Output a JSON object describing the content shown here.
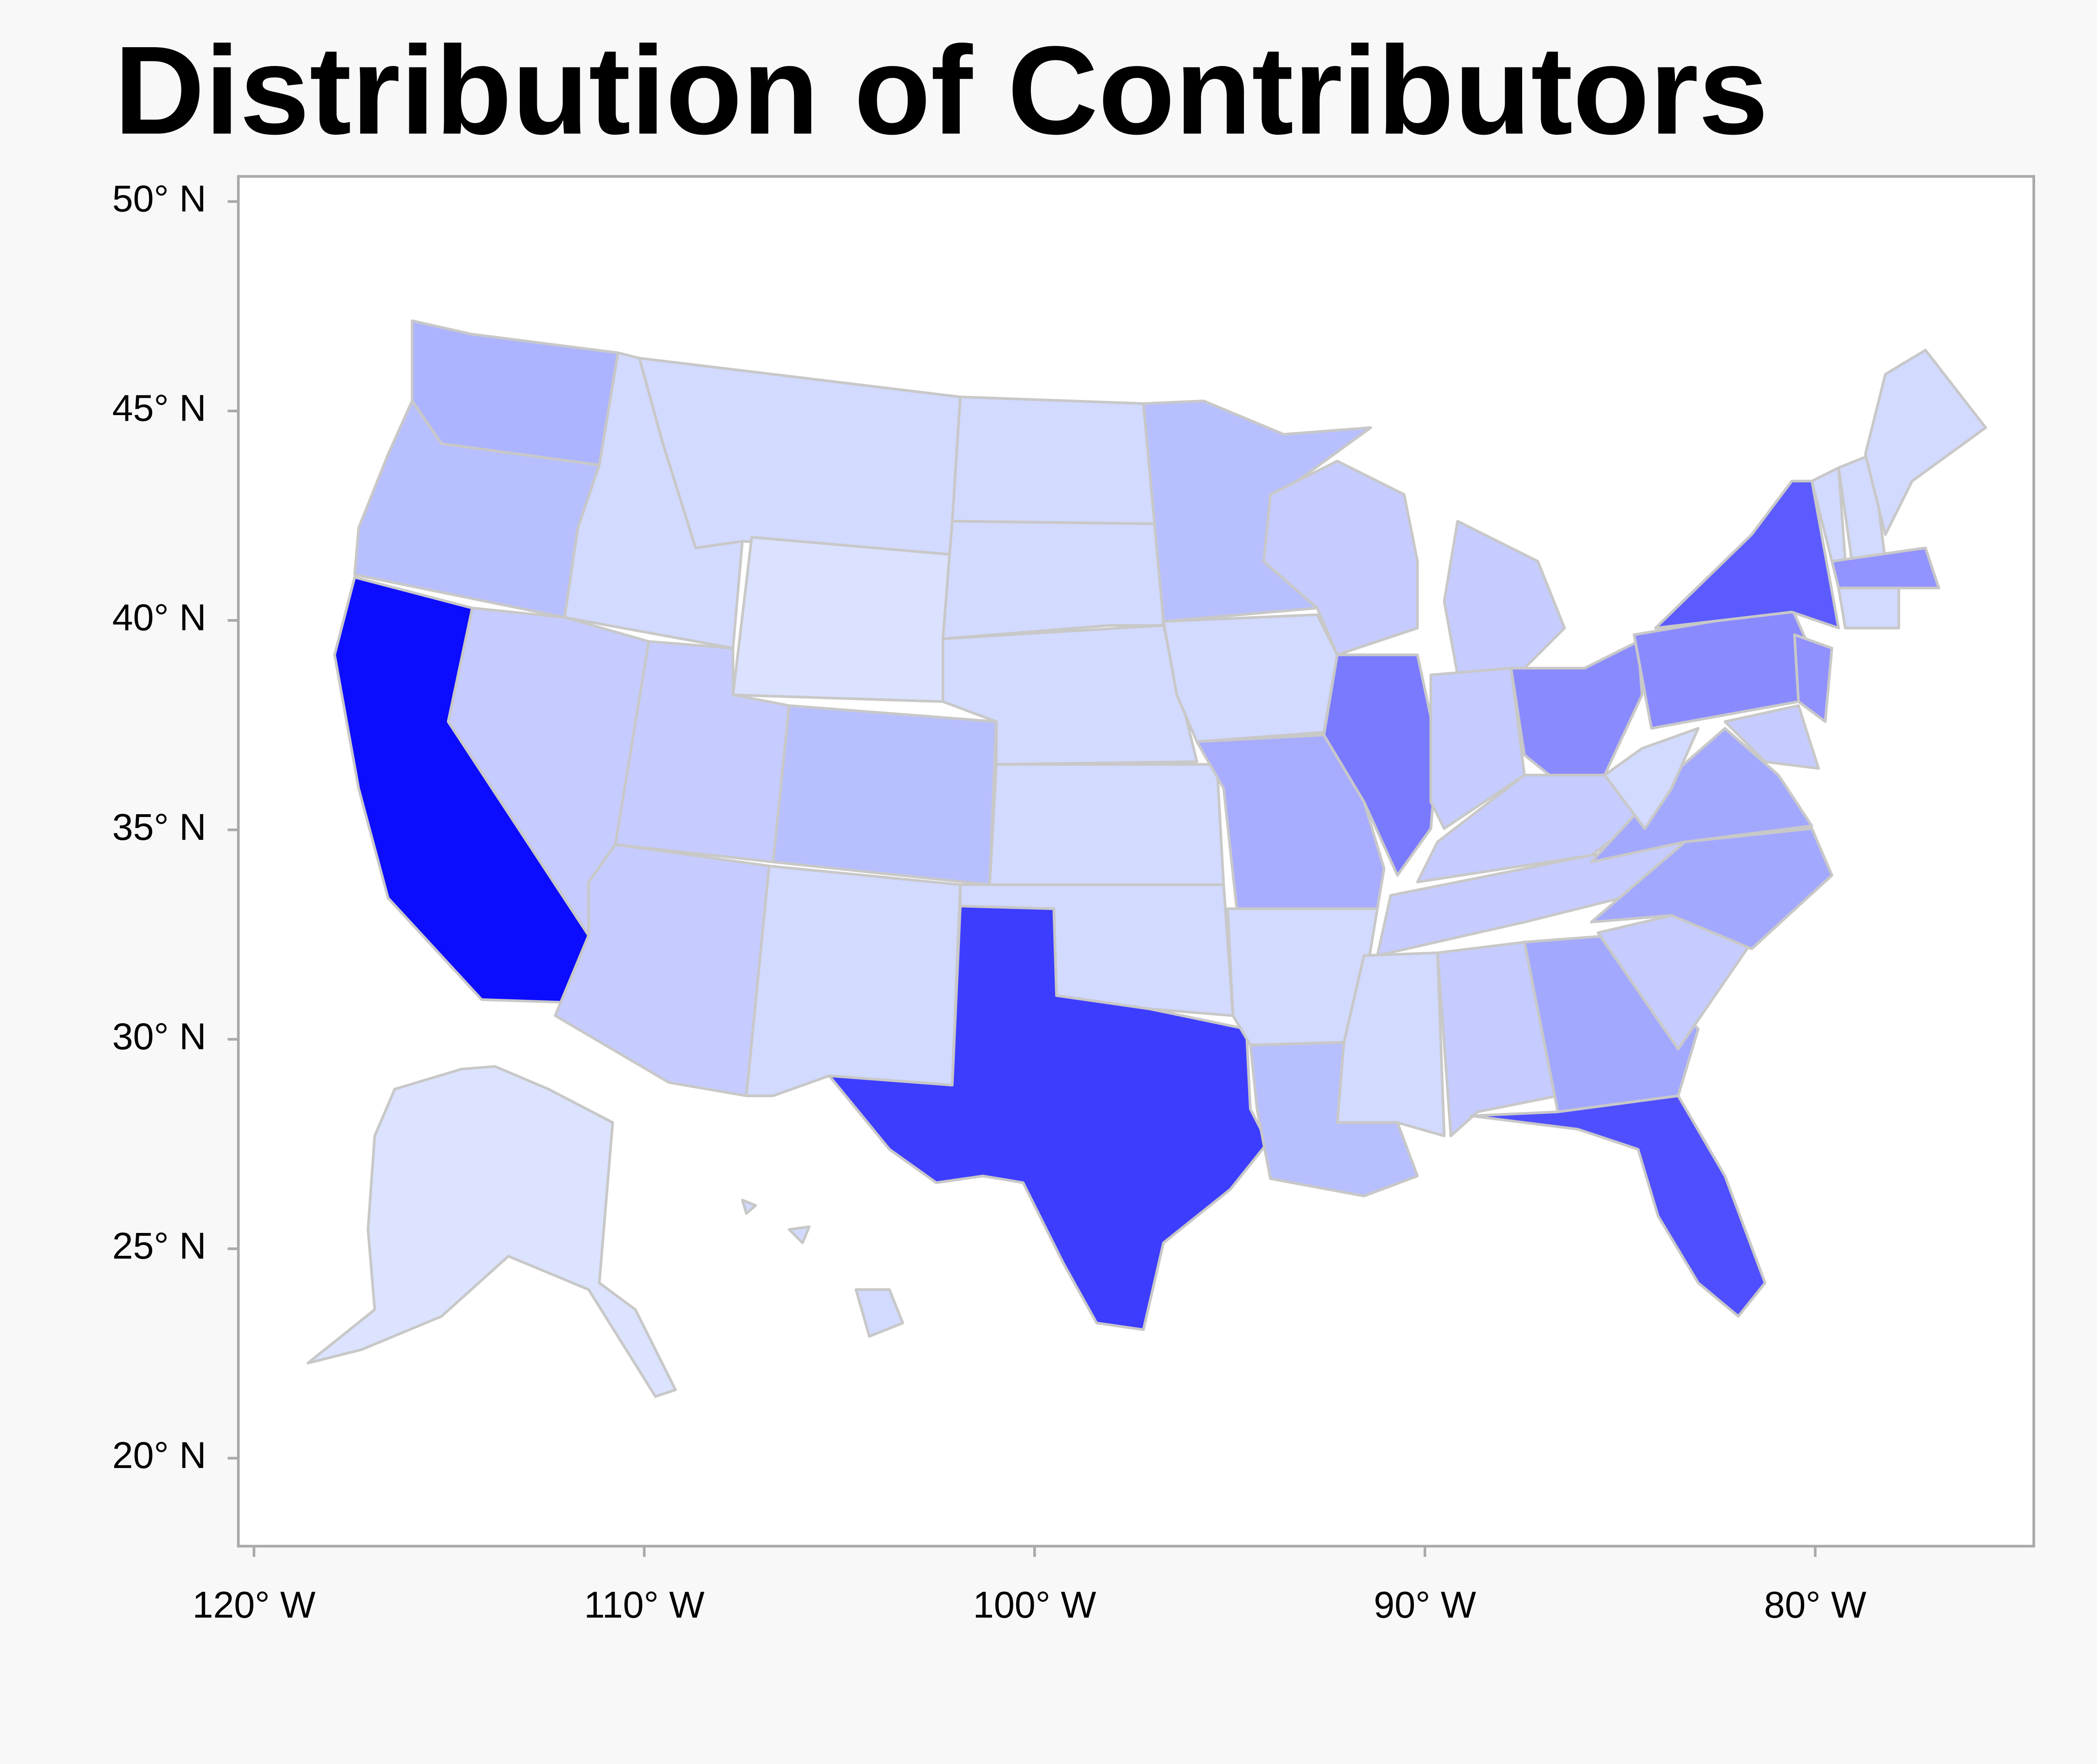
{
  "chart_data": {
    "type": "choropleth",
    "title": "Distribution of Contributors",
    "xlim": [
      -120.4,
      -74.4
    ],
    "ylim": [
      17.9,
      50.6
    ],
    "xticks": [
      {
        "value": -120,
        "label": "120° W"
      },
      {
        "value": -110,
        "label": "110° W"
      },
      {
        "value": -100,
        "label": "100° W"
      },
      {
        "value": -90,
        "label": "90° W"
      },
      {
        "value": -80,
        "label": "80° W"
      }
    ],
    "yticks": [
      {
        "value": 20,
        "label": "20° N"
      },
      {
        "value": 25,
        "label": "25° N"
      },
      {
        "value": 30,
        "label": "30° N"
      },
      {
        "value": 35,
        "label": "35° N"
      },
      {
        "value": 40,
        "label": "40° N"
      },
      {
        "value": 45,
        "label": "45° N"
      },
      {
        "value": 50,
        "label": "50° N"
      }
    ],
    "region_colors": [
      "#adb4ff",
      "#b8bfff",
      "#0c0cff",
      "#c6ccff",
      "#d2daff",
      "#d2daff",
      "#dbe2ff",
      "#c6ccff",
      "#b8bfff",
      "#c6ccff",
      "#d2daff",
      "#d2daff",
      "#d2daff",
      "#d2daff",
      "#d2daff",
      "#d2daff",
      "#3d3dff",
      "#b8bfff",
      "#d2daff",
      "#a8acff",
      "#d2daff",
      "#b8bfff",
      "#c6ccff",
      "#7a7aff",
      "#c6ccff",
      "#c6ccff",
      "#8a8aff",
      "#c6ccff",
      "#c6ccff",
      "#d2daff",
      "#c6ccff",
      "#a3a8ff",
      "#4f4fff",
      "#c6ccff",
      "#a3a8ff",
      "#a3a8ff",
      "#d2daff",
      "#8a8aff",
      "#5b5bff",
      "#9090ff",
      "#c6ccff",
      "#d2daff",
      "#d2daff",
      "#d2daff",
      "#9393ff",
      "#d2daff",
      "#dbe3ff",
      "#d2daff",
      "#d2daff",
      "#d2daff"
    ]
  }
}
